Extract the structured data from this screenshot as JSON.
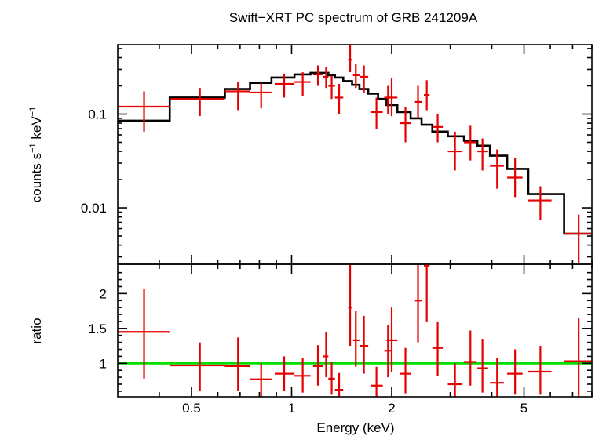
{
  "chart_data": [
    {
      "type": "line",
      "panel": "spectrum",
      "title": "Swift−XRT PC spectrum of GRB 241209A",
      "ylabel_main": "counts s",
      "ylabel_exp1": "−1",
      "ylabel_mid": " keV",
      "ylabel_exp2": "−1",
      "y_scale": "log",
      "x_scale": "log",
      "xlim": [
        0.3,
        8.0
      ],
      "ylim": [
        0.0025,
        0.55
      ],
      "y_ticks": [
        {
          "value": 0.1,
          "label": "0.1"
        },
        {
          "value": 0.01,
          "label": "0.01"
        }
      ],
      "series": [
        {
          "style": "crosses",
          "color": "#e60000",
          "points": [
            {
              "x": 0.36,
              "xlo": 0.3,
              "xhi": 0.43,
              "y": 0.12,
              "ylo": 0.065,
              "yhi": 0.175
            },
            {
              "x": 0.53,
              "xlo": 0.43,
              "xhi": 0.63,
              "y": 0.145,
              "ylo": 0.095,
              "yhi": 0.19
            },
            {
              "x": 0.69,
              "xlo": 0.63,
              "xhi": 0.75,
              "y": 0.175,
              "ylo": 0.11,
              "yhi": 0.22
            },
            {
              "x": 0.81,
              "xlo": 0.75,
              "xhi": 0.87,
              "y": 0.17,
              "ylo": 0.115,
              "yhi": 0.215
            },
            {
              "x": 0.95,
              "xlo": 0.89,
              "xhi": 1.02,
              "y": 0.21,
              "ylo": 0.15,
              "yhi": 0.27
            },
            {
              "x": 1.08,
              "xlo": 1.02,
              "xhi": 1.14,
              "y": 0.22,
              "ylo": 0.155,
              "yhi": 0.28
            },
            {
              "x": 1.2,
              "xlo": 1.16,
              "xhi": 1.24,
              "y": 0.265,
              "ylo": 0.2,
              "yhi": 0.33
            },
            {
              "x": 1.27,
              "xlo": 1.24,
              "xhi": 1.29,
              "y": 0.25,
              "ylo": 0.19,
              "yhi": 0.32
            },
            {
              "x": 1.32,
              "xlo": 1.29,
              "xhi": 1.35,
              "y": 0.2,
              "ylo": 0.145,
              "yhi": 0.255
            },
            {
              "x": 1.39,
              "xlo": 1.35,
              "xhi": 1.43,
              "y": 0.15,
              "ylo": 0.1,
              "yhi": 0.21
            },
            {
              "x": 1.5,
              "xlo": 1.48,
              "xhi": 1.52,
              "y": 0.38,
              "ylo": 0.28,
              "yhi": 0.55
            },
            {
              "x": 1.56,
              "xlo": 1.53,
              "xhi": 1.6,
              "y": 0.26,
              "ylo": 0.19,
              "yhi": 0.34
            },
            {
              "x": 1.65,
              "xlo": 1.6,
              "xhi": 1.7,
              "y": 0.25,
              "ylo": 0.17,
              "yhi": 0.33
            },
            {
              "x": 1.8,
              "xlo": 1.73,
              "xhi": 1.88,
              "y": 0.105,
              "ylo": 0.07,
              "yhi": 0.15
            },
            {
              "x": 1.95,
              "xlo": 1.9,
              "xhi": 2.0,
              "y": 0.15,
              "ylo": 0.1,
              "yhi": 0.2
            },
            {
              "x": 2.0,
              "xlo": 1.93,
              "xhi": 2.08,
              "y": 0.15,
              "ylo": 0.095,
              "yhi": 0.24
            },
            {
              "x": 2.2,
              "xlo": 2.12,
              "xhi": 2.28,
              "y": 0.08,
              "ylo": 0.05,
              "yhi": 0.12
            },
            {
              "x": 2.4,
              "xlo": 2.35,
              "xhi": 2.46,
              "y": 0.135,
              "ylo": 0.09,
              "yhi": 0.2
            },
            {
              "x": 2.55,
              "xlo": 2.5,
              "xhi": 2.6,
              "y": 0.16,
              "ylo": 0.11,
              "yhi": 0.23
            },
            {
              "x": 2.75,
              "xlo": 2.65,
              "xhi": 2.85,
              "y": 0.073,
              "ylo": 0.05,
              "yhi": 0.1
            },
            {
              "x": 3.1,
              "xlo": 2.95,
              "xhi": 3.25,
              "y": 0.04,
              "ylo": 0.025,
              "yhi": 0.065
            },
            {
              "x": 3.45,
              "xlo": 3.3,
              "xhi": 3.6,
              "y": 0.05,
              "ylo": 0.032,
              "yhi": 0.075
            },
            {
              "x": 3.75,
              "xlo": 3.62,
              "xhi": 3.9,
              "y": 0.04,
              "ylo": 0.025,
              "yhi": 0.055
            },
            {
              "x": 4.15,
              "xlo": 3.95,
              "xhi": 4.35,
              "y": 0.028,
              "ylo": 0.016,
              "yhi": 0.042
            },
            {
              "x": 4.7,
              "xlo": 4.45,
              "xhi": 4.95,
              "y": 0.021,
              "ylo": 0.013,
              "yhi": 0.034
            },
            {
              "x": 5.6,
              "xlo": 5.15,
              "xhi": 6.05,
              "y": 0.012,
              "ylo": 0.0075,
              "yhi": 0.017
            },
            {
              "x": 7.3,
              "xlo": 6.6,
              "xhi": 8.0,
              "y": 0.0053,
              "ylo": 0.0025,
              "yhi": 0.0085
            }
          ]
        },
        {
          "style": "steps",
          "color": "#000000",
          "steps": [
            {
              "x1": 0.3,
              "x2": 0.43,
              "y": 0.085
            },
            {
              "x1": 0.43,
              "x2": 0.63,
              "y": 0.15
            },
            {
              "x1": 0.63,
              "x2": 0.75,
              "y": 0.185
            },
            {
              "x1": 0.75,
              "x2": 0.87,
              "y": 0.215
            },
            {
              "x1": 0.87,
              "x2": 1.02,
              "y": 0.245
            },
            {
              "x1": 1.02,
              "x2": 1.14,
              "y": 0.265
            },
            {
              "x1": 1.14,
              "x2": 1.29,
              "y": 0.275
            },
            {
              "x1": 1.29,
              "x2": 1.35,
              "y": 0.26
            },
            {
              "x1": 1.35,
              "x2": 1.43,
              "y": 0.245
            },
            {
              "x1": 1.43,
              "x2": 1.52,
              "y": 0.225
            },
            {
              "x1": 1.52,
              "x2": 1.6,
              "y": 0.205
            },
            {
              "x1": 1.6,
              "x2": 1.7,
              "y": 0.185
            },
            {
              "x1": 1.7,
              "x2": 1.82,
              "y": 0.165
            },
            {
              "x1": 1.82,
              "x2": 1.93,
              "y": 0.145
            },
            {
              "x1": 1.93,
              "x2": 2.08,
              "y": 0.125
            },
            {
              "x1": 2.08,
              "x2": 2.28,
              "y": 0.105
            },
            {
              "x1": 2.28,
              "x2": 2.46,
              "y": 0.09
            },
            {
              "x1": 2.46,
              "x2": 2.65,
              "y": 0.077
            },
            {
              "x1": 2.65,
              "x2": 2.95,
              "y": 0.065
            },
            {
              "x1": 2.95,
              "x2": 3.3,
              "y": 0.058
            },
            {
              "x1": 3.3,
              "x2": 3.62,
              "y": 0.052
            },
            {
              "x1": 3.62,
              "x2": 3.95,
              "y": 0.046
            },
            {
              "x1": 3.95,
              "x2": 4.45,
              "y": 0.036
            },
            {
              "x1": 4.45,
              "x2": 5.15,
              "y": 0.026
            },
            {
              "x1": 5.15,
              "x2": 6.6,
              "y": 0.014
            },
            {
              "x1": 6.6,
              "x2": 8.0,
              "y": 0.0053
            }
          ]
        }
      ]
    },
    {
      "type": "scatter",
      "panel": "ratio",
      "xlabel": "Energy (keV)",
      "ylabel": "ratio",
      "x_scale": "log",
      "xlim": [
        0.3,
        8.0
      ],
      "ylim": [
        0.52,
        2.42
      ],
      "y_ticks": [
        {
          "value": 1,
          "label": "1"
        },
        {
          "value": 1.5,
          "label": "1.5"
        },
        {
          "value": 2,
          "label": "2"
        }
      ],
      "x_ticks": [
        {
          "value": 0.5,
          "label": "0.5"
        },
        {
          "value": 1,
          "label": "1"
        },
        {
          "value": 2,
          "label": "2"
        },
        {
          "value": 5,
          "label": "5"
        }
      ],
      "reference_line": {
        "y": 1,
        "color": "#00dd00"
      },
      "series": [
        {
          "style": "crosses",
          "color": "#e60000",
          "points": [
            {
              "x": 0.36,
              "xlo": 0.3,
              "xhi": 0.43,
              "y": 1.45,
              "ylo": 0.78,
              "yhi": 2.07
            },
            {
              "x": 0.53,
              "xlo": 0.43,
              "xhi": 0.63,
              "y": 0.97,
              "ylo": 0.6,
              "yhi": 1.3
            },
            {
              "x": 0.69,
              "xlo": 0.63,
              "xhi": 0.75,
              "y": 0.96,
              "ylo": 0.6,
              "yhi": 1.37
            },
            {
              "x": 0.81,
              "xlo": 0.75,
              "xhi": 0.87,
              "y": 0.77,
              "ylo": 0.52,
              "yhi": 1.0
            },
            {
              "x": 0.95,
              "xlo": 0.89,
              "xhi": 1.02,
              "y": 0.85,
              "ylo": 0.6,
              "yhi": 1.1
            },
            {
              "x": 1.08,
              "xlo": 1.02,
              "xhi": 1.14,
              "y": 0.82,
              "ylo": 0.58,
              "yhi": 1.07
            },
            {
              "x": 1.2,
              "xlo": 1.16,
              "xhi": 1.24,
              "y": 0.96,
              "ylo": 0.68,
              "yhi": 1.26
            },
            {
              "x": 1.27,
              "xlo": 1.24,
              "xhi": 1.29,
              "y": 1.1,
              "ylo": 0.8,
              "yhi": 1.45
            },
            {
              "x": 1.32,
              "xlo": 1.29,
              "xhi": 1.35,
              "y": 0.78,
              "ylo": 0.55,
              "yhi": 1.02
            },
            {
              "x": 1.39,
              "xlo": 1.35,
              "xhi": 1.43,
              "y": 0.62,
              "ylo": 0.52,
              "yhi": 0.86
            },
            {
              "x": 1.5,
              "xlo": 1.48,
              "xhi": 1.52,
              "y": 1.8,
              "ylo": 1.25,
              "yhi": 2.42
            },
            {
              "x": 1.56,
              "xlo": 1.53,
              "xhi": 1.6,
              "y": 1.33,
              "ylo": 0.95,
              "yhi": 1.75
            },
            {
              "x": 1.65,
              "xlo": 1.6,
              "xhi": 1.7,
              "y": 1.25,
              "ylo": 0.85,
              "yhi": 1.68
            },
            {
              "x": 1.8,
              "xlo": 1.73,
              "xhi": 1.88,
              "y": 0.68,
              "ylo": 0.52,
              "yhi": 0.95
            },
            {
              "x": 1.95,
              "xlo": 1.9,
              "xhi": 2.0,
              "y": 1.18,
              "ylo": 0.8,
              "yhi": 1.55
            },
            {
              "x": 2.0,
              "xlo": 1.93,
              "xhi": 2.08,
              "y": 1.33,
              "ylo": 0.88,
              "yhi": 1.8
            },
            {
              "x": 2.2,
              "xlo": 2.12,
              "xhi": 2.28,
              "y": 0.85,
              "ylo": 0.57,
              "yhi": 1.22
            },
            {
              "x": 2.4,
              "xlo": 2.35,
              "xhi": 2.46,
              "y": 1.9,
              "ylo": 1.3,
              "yhi": 2.42
            },
            {
              "x": 2.55,
              "xlo": 2.5,
              "xhi": 2.6,
              "y": 2.4,
              "ylo": 1.6,
              "yhi": 2.42
            },
            {
              "x": 2.75,
              "xlo": 2.65,
              "xhi": 2.85,
              "y": 1.22,
              "ylo": 0.82,
              "yhi": 1.6
            },
            {
              "x": 3.1,
              "xlo": 2.95,
              "xhi": 3.25,
              "y": 0.7,
              "ylo": 0.52,
              "yhi": 1.0
            },
            {
              "x": 3.45,
              "xlo": 3.3,
              "xhi": 3.6,
              "y": 1.02,
              "ylo": 0.68,
              "yhi": 1.47
            },
            {
              "x": 3.75,
              "xlo": 3.62,
              "xhi": 3.9,
              "y": 0.93,
              "ylo": 0.58,
              "yhi": 1.35
            },
            {
              "x": 4.15,
              "xlo": 3.95,
              "xhi": 4.35,
              "y": 0.72,
              "ylo": 0.52,
              "yhi": 1.08
            },
            {
              "x": 4.7,
              "xlo": 4.45,
              "xhi": 4.95,
              "y": 0.85,
              "ylo": 0.55,
              "yhi": 1.2
            },
            {
              "x": 5.6,
              "xlo": 5.15,
              "xhi": 6.05,
              "y": 0.88,
              "ylo": 0.55,
              "yhi": 1.25
            },
            {
              "x": 7.3,
              "xlo": 6.6,
              "xhi": 8.0,
              "y": 1.03,
              "ylo": 0.52,
              "yhi": 1.65
            }
          ]
        }
      ]
    }
  ]
}
